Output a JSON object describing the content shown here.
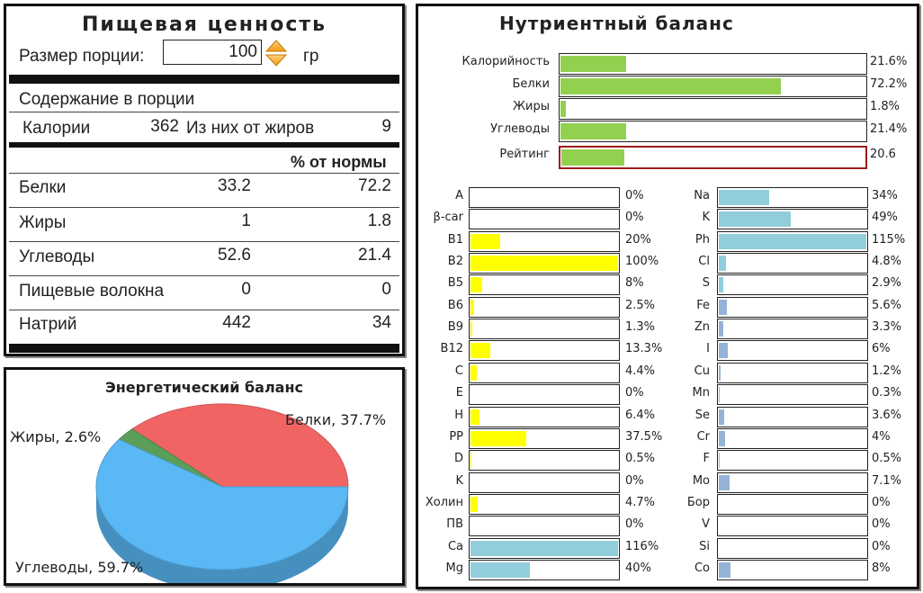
{
  "nutrition_facts": {
    "title": "Пищевая ценность",
    "serving_label": "Размер порции:",
    "serving_value": "100",
    "serving_unit": "гр",
    "per_serving_label": "Содержание в порции",
    "calories_label": "Калории",
    "calories_value": "362",
    "from_fat_label": "Из них от жиров",
    "from_fat_value": "9",
    "daily_header": "% от нормы",
    "rows": [
      {
        "label": "Белки",
        "amount": "33.2",
        "daily": "72.2"
      },
      {
        "label": "Жиры",
        "amount": "1",
        "daily": "1.8"
      },
      {
        "label": "Углеводы",
        "amount": "52.6",
        "daily": "21.4"
      },
      {
        "label": "Пищевые волокна",
        "amount": "0",
        "daily": "0"
      },
      {
        "label": "Натрий",
        "amount": "442",
        "daily": "34"
      }
    ]
  },
  "energy_balance": {
    "title": "Энергетический баланс",
    "slices": [
      {
        "label": "Белки, 37.7%",
        "value": 37.7,
        "color": "#f06464"
      },
      {
        "label": "Жиры, 2.6%",
        "value": 2.6,
        "color": "#5a9e5a"
      },
      {
        "label": "Углеводы, 59.7%",
        "value": 59.7,
        "color": "#5ab8f5"
      }
    ]
  },
  "nutrient_balance": {
    "title": "Нутриентный баланс",
    "main_color": "#92d050",
    "rating_border_color": "#9c1c1c",
    "main": [
      {
        "label": "Калорийность",
        "value_text": "21.6%",
        "fraction": 0.216
      },
      {
        "label": "Белки",
        "value_text": "72.2%",
        "fraction": 0.722
      },
      {
        "label": "Жиры",
        "value_text": "1.8%",
        "fraction": 0.018
      },
      {
        "label": "Углеводы",
        "value_text": "21.4%",
        "fraction": 0.214
      }
    ],
    "rating": {
      "label": "Рейтинг",
      "value_text": "20.6",
      "fraction": 0.206
    },
    "left": [
      {
        "label": "A",
        "value_text": "0%",
        "fraction": 0,
        "color": "#ffff00"
      },
      {
        "label": "β-car",
        "value_text": "0%",
        "fraction": 0,
        "color": "#ffff00"
      },
      {
        "label": "B1",
        "value_text": "20%",
        "fraction": 0.2,
        "color": "#ffff00"
      },
      {
        "label": "B2",
        "value_text": "100%",
        "fraction": 1.0,
        "color": "#ffff00"
      },
      {
        "label": "B5",
        "value_text": "8%",
        "fraction": 0.08,
        "color": "#ffff00"
      },
      {
        "label": "B6",
        "value_text": "2.5%",
        "fraction": 0.025,
        "color": "#ffff00"
      },
      {
        "label": "B9",
        "value_text": "1.3%",
        "fraction": 0.013,
        "color": "#ffff00"
      },
      {
        "label": "B12",
        "value_text": "13.3%",
        "fraction": 0.133,
        "color": "#ffff00"
      },
      {
        "label": "C",
        "value_text": "4.4%",
        "fraction": 0.044,
        "color": "#ffff00"
      },
      {
        "label": "E",
        "value_text": "0%",
        "fraction": 0,
        "color": "#ffff00"
      },
      {
        "label": "H",
        "value_text": "6.4%",
        "fraction": 0.064,
        "color": "#ffff00"
      },
      {
        "label": "PP",
        "value_text": "37.5%",
        "fraction": 0.375,
        "color": "#ffff00"
      },
      {
        "label": "D",
        "value_text": "0.5%",
        "fraction": 0.005,
        "color": "#ffff00"
      },
      {
        "label": "K",
        "value_text": "0%",
        "fraction": 0,
        "color": "#ffff00"
      },
      {
        "label": "Холин",
        "value_text": "4.7%",
        "fraction": 0.047,
        "color": "#ffff00"
      },
      {
        "label": "ПВ",
        "value_text": "0%",
        "fraction": 0,
        "color": "#ffff00"
      },
      {
        "label": "Ca",
        "value_text": "116%",
        "fraction": 1.0,
        "color": "#92cddc"
      },
      {
        "label": "Mg",
        "value_text": "40%",
        "fraction": 0.4,
        "color": "#92cddc"
      }
    ],
    "right": [
      {
        "label": "Na",
        "value_text": "34%",
        "fraction": 0.34,
        "color": "#92cddc"
      },
      {
        "label": "K",
        "value_text": "49%",
        "fraction": 0.49,
        "color": "#92cddc"
      },
      {
        "label": "Ph",
        "value_text": "115%",
        "fraction": 1.0,
        "color": "#92cddc"
      },
      {
        "label": "Cl",
        "value_text": "4.8%",
        "fraction": 0.048,
        "color": "#92cddc"
      },
      {
        "label": "S",
        "value_text": "2.9%",
        "fraction": 0.029,
        "color": "#92cddc"
      },
      {
        "label": "Fe",
        "value_text": "5.6%",
        "fraction": 0.056,
        "color": "#95b3d7"
      },
      {
        "label": "Zn",
        "value_text": "3.3%",
        "fraction": 0.033,
        "color": "#95b3d7"
      },
      {
        "label": "I",
        "value_text": "6%",
        "fraction": 0.06,
        "color": "#95b3d7"
      },
      {
        "label": "Cu",
        "value_text": "1.2%",
        "fraction": 0.012,
        "color": "#95b3d7"
      },
      {
        "label": "Mn",
        "value_text": "0.3%",
        "fraction": 0.003,
        "color": "#95b3d7"
      },
      {
        "label": "Se",
        "value_text": "3.6%",
        "fraction": 0.036,
        "color": "#95b3d7"
      },
      {
        "label": "Cr",
        "value_text": "4%",
        "fraction": 0.04,
        "color": "#95b3d7"
      },
      {
        "label": "F",
        "value_text": "0.5%",
        "fraction": 0.005,
        "color": "#95b3d7"
      },
      {
        "label": "Mo",
        "value_text": "7.1%",
        "fraction": 0.071,
        "color": "#95b3d7"
      },
      {
        "label": "Бор",
        "value_text": "0%",
        "fraction": 0,
        "color": "#95b3d7"
      },
      {
        "label": "V",
        "value_text": "0%",
        "fraction": 0,
        "color": "#95b3d7"
      },
      {
        "label": "Si",
        "value_text": "0%",
        "fraction": 0,
        "color": "#95b3d7"
      },
      {
        "label": "Co",
        "value_text": "8%",
        "fraction": 0.08,
        "color": "#95b3d7"
      }
    ]
  }
}
